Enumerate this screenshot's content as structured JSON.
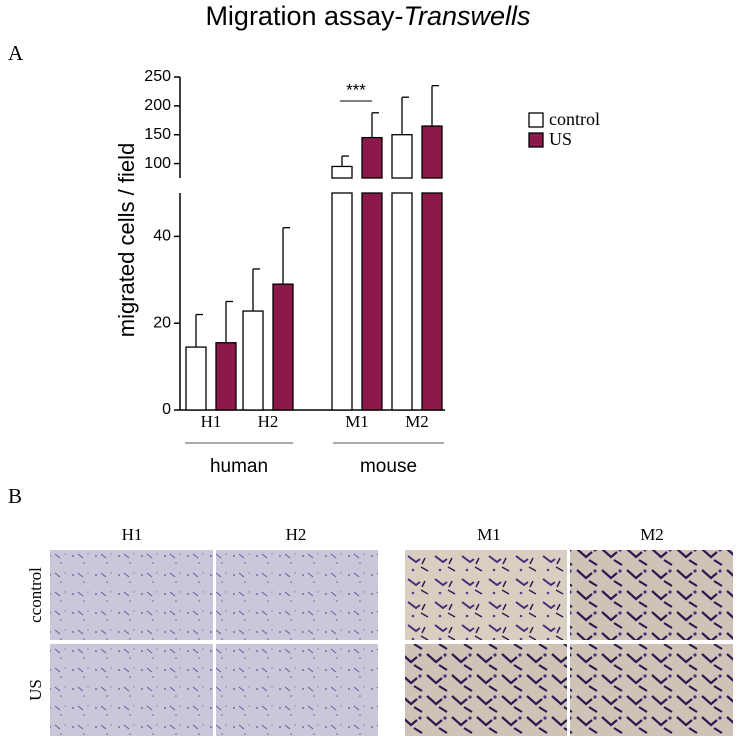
{
  "chart_data": {
    "type": "bar",
    "title": "Migration assay-",
    "title_italic": "Transwells",
    "panel_a": "A",
    "panel_b": "B",
    "ylabel": "migrated cells / field",
    "categories": [
      "H1",
      "H2",
      "M1",
      "M2"
    ],
    "groups": [
      "human",
      "mouse"
    ],
    "series": [
      {
        "name": "control",
        "color": "#ffffff",
        "values": [
          14.5,
          22.8,
          95,
          150
        ],
        "errors": [
          7.5,
          9.7,
          18,
          65
        ]
      },
      {
        "name": "US",
        "color": "#8b1a4a",
        "values": [
          15.5,
          29,
          145,
          165
        ],
        "errors": [
          9.5,
          13,
          43,
          70
        ]
      }
    ],
    "ylim": [
      0,
      250
    ],
    "ybreak": [
      50,
      75
    ],
    "yticks": [
      0,
      20,
      40,
      100,
      150,
      200,
      250
    ],
    "annotations": [
      {
        "text": "***"
      }
    ],
    "image_columns": [
      "H1",
      "H2",
      "M1",
      "M2"
    ],
    "image_rows": [
      "ccontrol",
      "US"
    ]
  }
}
